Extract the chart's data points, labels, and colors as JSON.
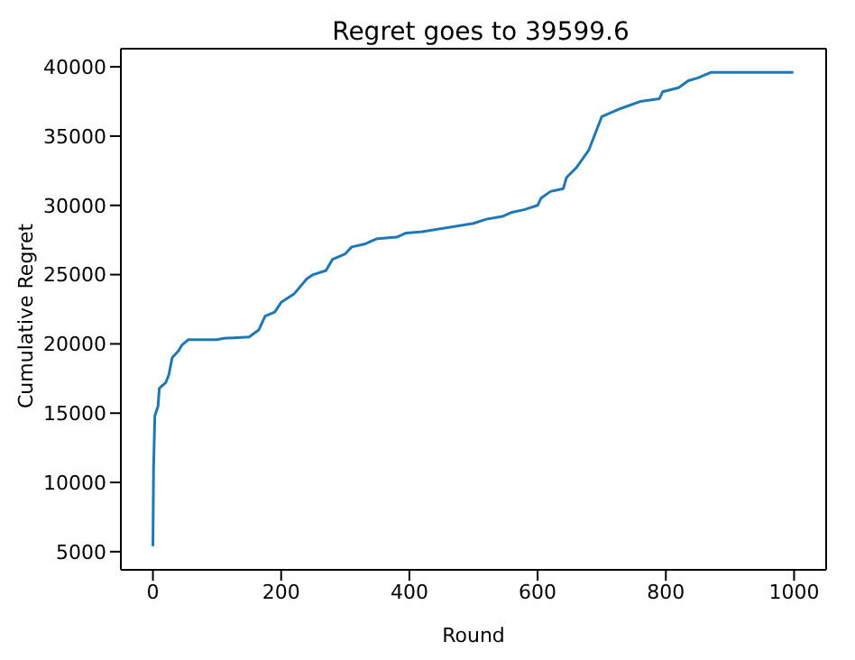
{
  "chart_data": {
    "type": "line",
    "title": "Regret goes to 39599.6",
    "xlabel": "Round",
    "ylabel": "Cumulative Regret",
    "x": [
      0,
      1,
      3,
      8,
      10,
      20,
      25,
      30,
      40,
      45,
      55,
      100,
      110,
      150,
      165,
      175,
      190,
      200,
      220,
      240,
      250,
      270,
      280,
      300,
      310,
      330,
      340,
      350,
      380,
      395,
      420,
      500,
      520,
      545,
      560,
      580,
      600,
      605,
      620,
      640,
      645,
      660,
      680,
      700,
      730,
      760,
      790,
      795,
      820,
      835,
      850,
      870,
      999
    ],
    "series": [
      {
        "color": "#1f77b4",
        "values": [
          5400,
          11000,
          14800,
          15500,
          16800,
          17200,
          17800,
          19000,
          19500,
          19900,
          20300,
          20300,
          20400,
          20500,
          21000,
          22000,
          22300,
          23000,
          23600,
          24700,
          25000,
          25300,
          26100,
          26500,
          27000,
          27200,
          27400,
          27600,
          27700,
          28000,
          28100,
          28700,
          29000,
          29200,
          29500,
          29700,
          30000,
          30500,
          31000,
          31200,
          32000,
          32700,
          34000,
          36400,
          37000,
          37500,
          37700,
          38200,
          38500,
          39000,
          39200,
          39600,
          39600
        ]
      }
    ],
    "xlim": [
      -50,
      1050
    ],
    "ylim": [
      3690,
      41310
    ],
    "xticks": [
      0,
      200,
      400,
      600,
      800,
      1000
    ],
    "yticks": [
      5000,
      10000,
      15000,
      20000,
      25000,
      30000,
      35000,
      40000
    ],
    "grid": false,
    "legend": false,
    "marker": "none",
    "line_style": "solid"
  }
}
